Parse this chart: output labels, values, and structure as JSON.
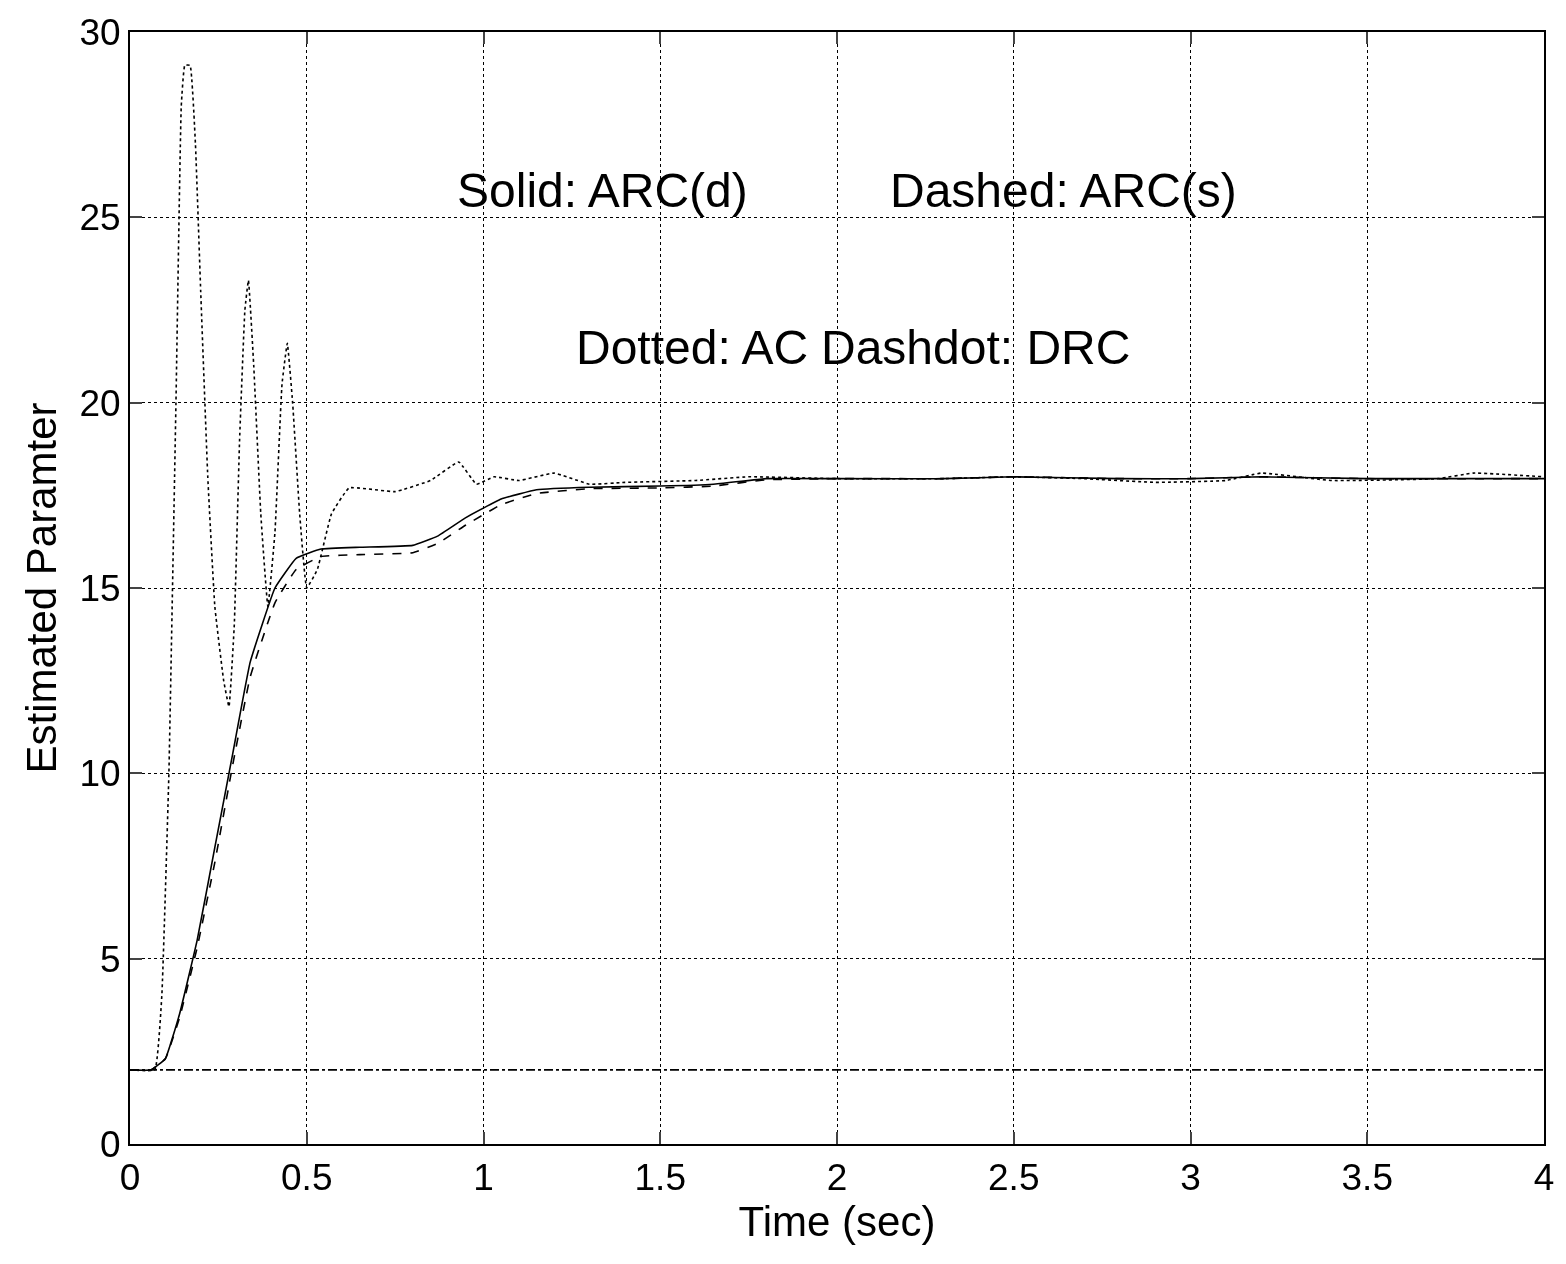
{
  "chart_data": {
    "type": "line",
    "xlabel": "Time (sec)",
    "ylabel": "Estimated Paramter",
    "xlim": [
      0,
      4
    ],
    "ylim": [
      0,
      30
    ],
    "xticks": [
      0,
      0.5,
      1,
      1.5,
      2,
      2.5,
      3,
      3.5,
      4
    ],
    "yticks": [
      0,
      5,
      10,
      15,
      20,
      25,
      30
    ],
    "grid": true,
    "annotations": [
      "Solid: ARC(d)",
      "Dashed: ARC(s)",
      "Dotted: AC",
      "Dashdot: DRC"
    ],
    "series": [
      {
        "color": "#000000",
        "line_style": "solid",
        "x": [
          0,
          0.06,
          0.1,
          0.14,
          0.19,
          0.24,
          0.29,
          0.34,
          0.41,
          0.47,
          0.54,
          0.65,
          0.8,
          0.87,
          0.95,
          1.05,
          1.15,
          1.3,
          1.5,
          1.65,
          1.8,
          2,
          2.3,
          2.5,
          2.8,
          3,
          3.2,
          3.5,
          4
        ],
        "values": [
          2,
          2,
          2.3,
          3.5,
          5.5,
          8,
          10.5,
          13,
          15,
          15.8,
          16.05,
          16.1,
          16.15,
          16.4,
          16.9,
          17.4,
          17.65,
          17.72,
          17.75,
          17.8,
          17.95,
          17.95,
          17.95,
          18,
          17.95,
          17.95,
          18,
          17.95,
          17.95
        ]
      },
      {
        "color": "#000000",
        "line_style": "dashed",
        "x": [
          0,
          0.06,
          0.1,
          0.14,
          0.19,
          0.24,
          0.29,
          0.34,
          0.41,
          0.47,
          0.54,
          0.65,
          0.8,
          0.87,
          0.95,
          1.05,
          1.15,
          1.3,
          1.5,
          1.65,
          1.8,
          2,
          2.3,
          2.5,
          2.8,
          3,
          3.2,
          3.5,
          4
        ],
        "values": [
          2,
          2,
          2.3,
          3.4,
          5.3,
          7.6,
          10.2,
          12.6,
          14.6,
          15.5,
          15.85,
          15.9,
          15.95,
          16.2,
          16.7,
          17.25,
          17.55,
          17.68,
          17.7,
          17.75,
          17.92,
          17.95,
          17.95,
          18,
          17.95,
          17.95,
          18,
          17.95,
          17.95
        ]
      },
      {
        "color": "#000000",
        "line_style": "dotted",
        "x": [
          0,
          0.07,
          0.09,
          0.11,
          0.13,
          0.145,
          0.155,
          0.17,
          0.185,
          0.2,
          0.22,
          0.24,
          0.265,
          0.28,
          0.295,
          0.31,
          0.325,
          0.335,
          0.35,
          0.37,
          0.39,
          0.41,
          0.43,
          0.445,
          0.46,
          0.48,
          0.5,
          0.53,
          0.57,
          0.62,
          0.75,
          0.85,
          0.93,
          0.98,
          1.03,
          1.1,
          1.2,
          1.3,
          1.4,
          1.6,
          1.75,
          2,
          2.3,
          2.5,
          2.7,
          2.9,
          3.1,
          3.2,
          3.4,
          3.7,
          3.8,
          4
        ],
        "values": [
          2,
          2,
          4,
          10,
          20,
          28,
          29.1,
          29.1,
          27,
          23,
          18,
          14.5,
          12.5,
          11.8,
          14,
          19,
          22.5,
          23.3,
          21,
          17,
          14.5,
          16.5,
          20.5,
          21.6,
          20,
          17,
          15,
          15.5,
          17,
          17.7,
          17.6,
          17.9,
          18.4,
          17.8,
          18,
          17.9,
          18.1,
          17.8,
          17.85,
          17.9,
          18,
          17.95,
          17.95,
          18,
          17.95,
          17.85,
          17.9,
          18.1,
          17.9,
          17.95,
          18.1,
          18
        ]
      },
      {
        "color": "#000000",
        "line_style": "dashdot",
        "x": [
          0,
          4
        ],
        "values": [
          2,
          2
        ]
      }
    ]
  }
}
